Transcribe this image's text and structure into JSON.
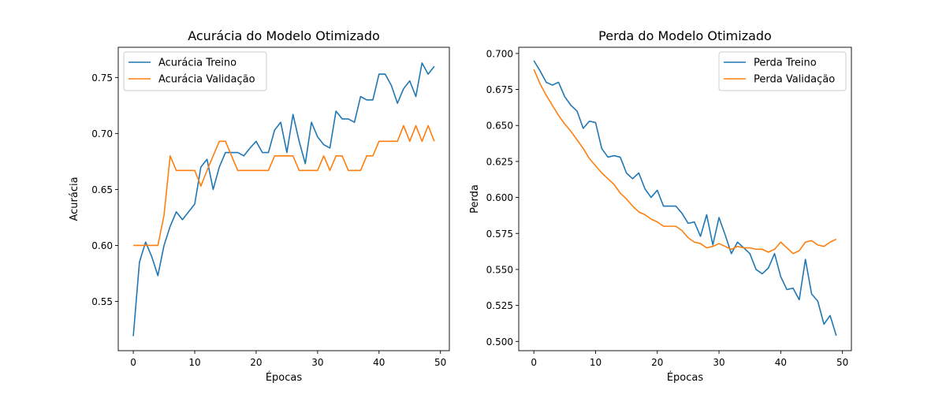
{
  "chart_data": [
    {
      "type": "line",
      "title": "Acurácia do Modelo Otimizado",
      "xlabel": "Épocas",
      "ylabel": "Acurácia",
      "xlim": [
        -2.45,
        51.45
      ],
      "ylim": [
        0.506,
        0.777
      ],
      "xticks": [
        0,
        10,
        20,
        30,
        40,
        50
      ],
      "yticks": [
        0.55,
        0.6,
        0.65,
        0.7,
        0.75
      ],
      "ytick_decimals": 2,
      "legend_position": "upper left",
      "grid": false,
      "x": [
        0,
        1,
        2,
        3,
        4,
        5,
        6,
        7,
        8,
        9,
        10,
        11,
        12,
        13,
        14,
        15,
        16,
        17,
        18,
        19,
        20,
        21,
        22,
        23,
        24,
        25,
        26,
        27,
        28,
        29,
        30,
        31,
        32,
        33,
        34,
        35,
        36,
        37,
        38,
        39,
        40,
        41,
        42,
        43,
        44,
        45,
        46,
        47,
        48,
        49
      ],
      "series": [
        {
          "name": "Acurácia Treino",
          "color": "#1f77b4",
          "values": [
            0.519,
            0.585,
            0.603,
            0.59,
            0.573,
            0.6,
            0.617,
            0.63,
            0.623,
            0.63,
            0.637,
            0.67,
            0.677,
            0.65,
            0.67,
            0.683,
            0.683,
            0.683,
            0.68,
            0.687,
            0.693,
            0.683,
            0.683,
            0.703,
            0.71,
            0.683,
            0.717,
            0.693,
            0.673,
            0.71,
            0.697,
            0.69,
            0.687,
            0.72,
            0.713,
            0.713,
            0.71,
            0.733,
            0.73,
            0.73,
            0.753,
            0.753,
            0.743,
            0.727,
            0.74,
            0.747,
            0.733,
            0.763,
            0.753,
            0.76
          ]
        },
        {
          "name": "Acurácia Validação",
          "color": "#ff7f0e",
          "values": [
            0.6,
            0.6,
            0.6,
            0.6,
            0.6,
            0.627,
            0.68,
            0.667,
            0.667,
            0.667,
            0.667,
            0.653,
            0.667,
            0.68,
            0.693,
            0.693,
            0.68,
            0.667,
            0.667,
            0.667,
            0.667,
            0.667,
            0.667,
            0.68,
            0.68,
            0.68,
            0.68,
            0.667,
            0.667,
            0.667,
            0.667,
            0.68,
            0.667,
            0.68,
            0.68,
            0.667,
            0.667,
            0.667,
            0.68,
            0.68,
            0.693,
            0.693,
            0.693,
            0.693,
            0.707,
            0.693,
            0.707,
            0.693,
            0.707,
            0.693
          ]
        }
      ]
    },
    {
      "type": "line",
      "title": "Perda do Modelo Otimizado",
      "xlabel": "Épocas",
      "ylabel": "Perda",
      "xlim": [
        -2.45,
        51.45
      ],
      "ylim": [
        0.4936,
        0.7043
      ],
      "xticks": [
        0,
        10,
        20,
        30,
        40,
        50
      ],
      "yticks": [
        0.5,
        0.525,
        0.55,
        0.575,
        0.6,
        0.625,
        0.65,
        0.675,
        0.7
      ],
      "ytick_decimals": 3,
      "legend_position": "upper right",
      "grid": false,
      "x": [
        0,
        1,
        2,
        3,
        4,
        5,
        6,
        7,
        8,
        9,
        10,
        11,
        12,
        13,
        14,
        15,
        16,
        17,
        18,
        19,
        20,
        21,
        22,
        23,
        24,
        25,
        26,
        27,
        28,
        29,
        30,
        31,
        32,
        33,
        34,
        35,
        36,
        37,
        38,
        39,
        40,
        41,
        42,
        43,
        44,
        45,
        46,
        47,
        48,
        49
      ],
      "series": [
        {
          "name": "Perda Treino",
          "color": "#1f77b4",
          "values": [
            0.695,
            0.688,
            0.68,
            0.678,
            0.68,
            0.67,
            0.664,
            0.66,
            0.648,
            0.653,
            0.652,
            0.634,
            0.628,
            0.629,
            0.628,
            0.617,
            0.613,
            0.617,
            0.606,
            0.6,
            0.605,
            0.594,
            0.594,
            0.594,
            0.589,
            0.582,
            0.583,
            0.573,
            0.588,
            0.567,
            0.586,
            0.574,
            0.561,
            0.569,
            0.565,
            0.561,
            0.55,
            0.547,
            0.551,
            0.561,
            0.545,
            0.536,
            0.537,
            0.529,
            0.557,
            0.533,
            0.528,
            0.512,
            0.518,
            0.504
          ]
        },
        {
          "name": "Perda Validação",
          "color": "#ff7f0e",
          "values": [
            0.689,
            0.679,
            0.671,
            0.664,
            0.657,
            0.651,
            0.646,
            0.64,
            0.634,
            0.627,
            0.622,
            0.617,
            0.613,
            0.609,
            0.603,
            0.599,
            0.594,
            0.59,
            0.588,
            0.585,
            0.583,
            0.58,
            0.58,
            0.58,
            0.577,
            0.572,
            0.569,
            0.568,
            0.565,
            0.566,
            0.568,
            0.566,
            0.564,
            0.566,
            0.565,
            0.565,
            0.564,
            0.564,
            0.562,
            0.564,
            0.569,
            0.565,
            0.561,
            0.563,
            0.569,
            0.57,
            0.567,
            0.566,
            0.569,
            0.571
          ]
        }
      ]
    }
  ]
}
